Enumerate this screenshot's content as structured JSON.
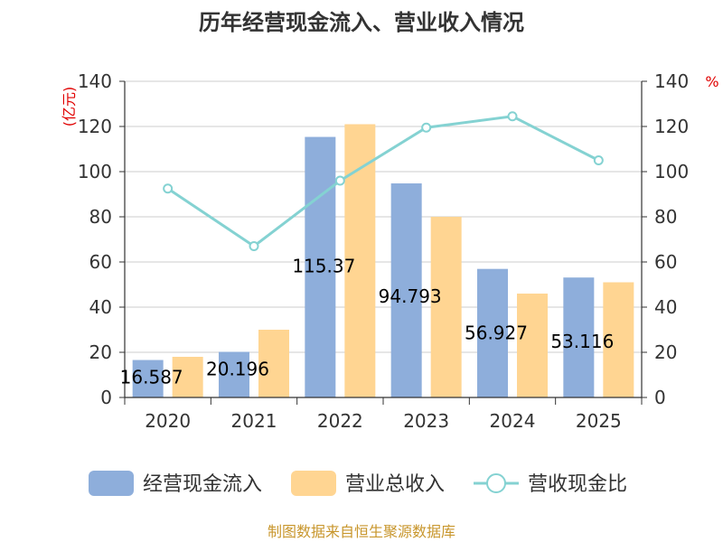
{
  "chart_data": {
    "type": "bar",
    "title": "历年经营现金流入、营业收入情况",
    "categories": [
      "2020",
      "2021",
      "2022",
      "2023",
      "2024",
      "2025"
    ],
    "series": [
      {
        "name": "经营现金流入",
        "kind": "bar",
        "axis": "left",
        "color": "#8eaedb",
        "values": [
          16.587,
          20.196,
          115.37,
          94.793,
          56.927,
          53.116
        ],
        "labels": [
          "16.587",
          "20.196",
          "115.37",
          "94.793",
          "56.927",
          "53.116"
        ]
      },
      {
        "name": "营业总收入",
        "kind": "bar",
        "axis": "left",
        "color": "#ffd592",
        "values": [
          18,
          30,
          121,
          80,
          46,
          51
        ]
      },
      {
        "name": "营收现金比",
        "kind": "line",
        "axis": "right",
        "color": "#84d2d2",
        "values": [
          92.5,
          67,
          96,
          119.5,
          124.5,
          105
        ]
      }
    ],
    "y_left": {
      "unit": "(亿元)",
      "min": 0,
      "max": 140,
      "ticks": [
        0,
        20,
        40,
        60,
        80,
        100,
        120,
        140
      ]
    },
    "y_right": {
      "unit": "%",
      "min": 0,
      "max": 140,
      "ticks": [
        0,
        20,
        40,
        60,
        80,
        100,
        120,
        140
      ]
    },
    "grid": true,
    "legend_position": "bottom",
    "source": "制图数据来自恒生聚源数据库"
  }
}
